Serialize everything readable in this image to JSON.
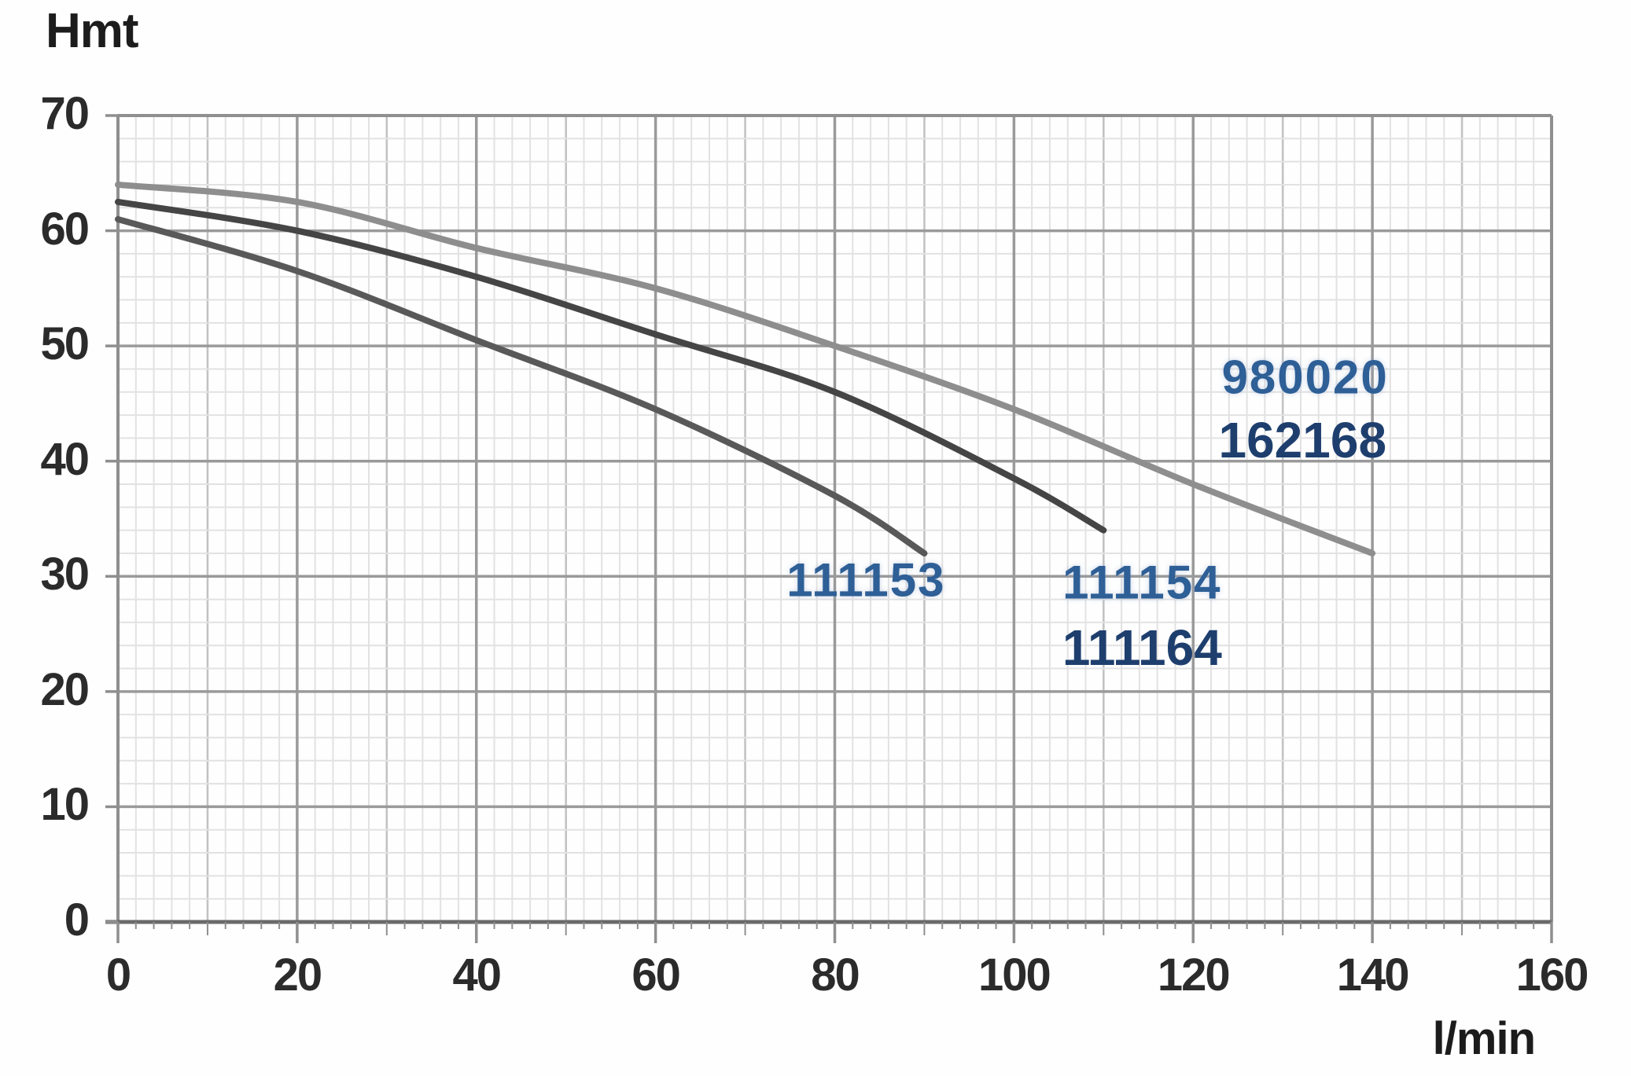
{
  "chart_data": {
    "type": "line",
    "title": "",
    "xlabel": "l/min",
    "ylabel": "Hmt",
    "xlim": [
      0,
      160
    ],
    "ylim": [
      0,
      70
    ],
    "x_ticks": [
      0,
      20,
      40,
      60,
      80,
      100,
      120,
      140,
      160
    ],
    "y_ticks": [
      0,
      10,
      20,
      30,
      40,
      50,
      60,
      70
    ],
    "grid": {
      "minor_step_x": 2,
      "medium_step_x": 10,
      "major_step_x": 20,
      "minor_step_y": 2,
      "major_step_y": 10,
      "minor_color": "#e2e2e2",
      "medium_color": "#c3c3c3",
      "major_color": "#9a9a9a",
      "frame_color": "#8f8f8f",
      "baseline_color": "#6a6a6a"
    },
    "legend_position": "none",
    "series": [
      {
        "name": "980020 / 162168",
        "codes": [
          "980020",
          "162168"
        ],
        "color": "#8e8e8e",
        "x": [
          0,
          20,
          40,
          60,
          80,
          100,
          120,
          140
        ],
        "y": [
          64,
          62.5,
          58.5,
          55,
          50,
          44.5,
          38,
          32
        ]
      },
      {
        "name": "111154 / 111164",
        "codes": [
          "111154",
          "111164"
        ],
        "color": "#454545",
        "x": [
          0,
          20,
          40,
          60,
          80,
          100,
          110
        ],
        "y": [
          62.5,
          60,
          56,
          51,
          46,
          38.5,
          34
        ]
      },
      {
        "name": "111153",
        "codes": [
          "111153"
        ],
        "color": "#595959",
        "x": [
          0,
          20,
          40,
          60,
          80,
          90
        ],
        "y": [
          61,
          56.5,
          50.5,
          44.5,
          37,
          32
        ]
      }
    ],
    "annotations": [
      {
        "text": "980020",
        "x": 132.5,
        "y": 47.3,
        "color": "#2e5f96",
        "style": "steel"
      },
      {
        "text": "162168",
        "x": 132.2,
        "y": 41.8,
        "color": "#1e3f6e",
        "style": "navy"
      },
      {
        "text": "111153",
        "x": 83.5,
        "y": 29.7,
        "color": "#2e5f96",
        "style": "steel"
      },
      {
        "text": "111154",
        "x": 114.3,
        "y": 29.5,
        "color": "#2e5f96",
        "style": "steel"
      },
      {
        "text": "111164",
        "x": 114.3,
        "y": 23.8,
        "color": "#1e3f6e",
        "style": "navy"
      }
    ]
  }
}
